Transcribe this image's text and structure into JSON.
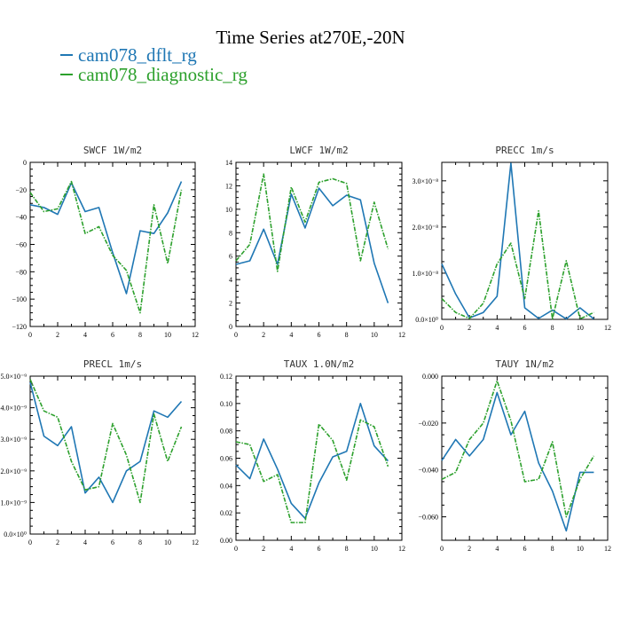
{
  "title": "Time Series at270E,-20N",
  "legend": [
    {
      "name": "cam078_dflt_rg",
      "color": "#1f77b4"
    },
    {
      "name": "cam078_diagnostic_rg",
      "color": "#2ca02c"
    }
  ],
  "chart_data": [
    {
      "type": "line",
      "title": "SWCF   1W/m2",
      "xlim": [
        0,
        12
      ],
      "xticks": [
        "0",
        "2",
        "4",
        "6",
        "8",
        "10",
        "12"
      ],
      "ylim": [
        -120,
        0
      ],
      "yticks": [
        {
          "v": 0,
          "label": "0"
        },
        {
          "v": -20,
          "label": "−20"
        },
        {
          "v": -40,
          "label": "−40"
        },
        {
          "v": -60,
          "label": "−60"
        },
        {
          "v": -80,
          "label": "−80"
        },
        {
          "v": -100,
          "label": "−100"
        },
        {
          "v": -120,
          "label": "−120"
        }
      ],
      "x": [
        0,
        1,
        2,
        3,
        4,
        5,
        6,
        7,
        8,
        9,
        10,
        11
      ],
      "series": [
        {
          "name": "cam078_dflt_rg",
          "color": "#1f77b4",
          "dashed": false,
          "values": [
            -31,
            -33,
            -38,
            -15,
            -36,
            -33,
            -66,
            -96,
            -50,
            -52,
            -37,
            -14
          ]
        },
        {
          "name": "cam078_diagnostic_rg",
          "color": "#2ca02c",
          "dashed": true,
          "values": [
            -22,
            -36,
            -34,
            -14,
            -52,
            -47,
            -68,
            -79,
            -110,
            -31,
            -74,
            -20
          ]
        }
      ]
    },
    {
      "type": "line",
      "title": "LWCF   1W/m2",
      "xlim": [
        0,
        12
      ],
      "xticks": [
        "0",
        "2",
        "4",
        "6",
        "8",
        "10",
        "12"
      ],
      "ylim": [
        0,
        14
      ],
      "yticks": [
        {
          "v": 0,
          "label": "0"
        },
        {
          "v": 2,
          "label": "2"
        },
        {
          "v": 4,
          "label": "4"
        },
        {
          "v": 6,
          "label": "6"
        },
        {
          "v": 8,
          "label": "8"
        },
        {
          "v": 10,
          "label": "10"
        },
        {
          "v": 12,
          "label": "12"
        },
        {
          "v": 14,
          "label": "14"
        }
      ],
      "x": [
        0,
        1,
        2,
        3,
        4,
        5,
        6,
        7,
        8,
        9,
        10,
        11
      ],
      "series": [
        {
          "name": "cam078_dflt_rg",
          "color": "#1f77b4",
          "dashed": false,
          "values": [
            5.3,
            5.6,
            8.3,
            5.3,
            11.3,
            8.4,
            11.8,
            10.3,
            11.2,
            10.8,
            5.4,
            2.0
          ]
        },
        {
          "name": "cam078_diagnostic_rg",
          "color": "#2ca02c",
          "dashed": true,
          "values": [
            5.6,
            7.0,
            13.0,
            4.7,
            11.9,
            8.9,
            12.3,
            12.6,
            12.2,
            5.6,
            10.6,
            6.6
          ]
        }
      ]
    },
    {
      "type": "line",
      "title": "PRECC   1m/s",
      "xlim": [
        0,
        12
      ],
      "xticks": [
        "0",
        "2",
        "4",
        "6",
        "8",
        "10",
        "12"
      ],
      "ylim": [
        0,
        3.4e-08
      ],
      "yticks": [
        {
          "v": 0,
          "label": "0.0×10⁰"
        },
        {
          "v": 1e-08,
          "label": "1.0×10⁻⁸"
        },
        {
          "v": 2e-08,
          "label": "2.0×10⁻⁸"
        },
        {
          "v": 3e-08,
          "label": "3.0×10⁻⁸"
        }
      ],
      "x": [
        0,
        1,
        2,
        3,
        4,
        5,
        6,
        7,
        8,
        9,
        10,
        11
      ],
      "series": [
        {
          "name": "cam078_dflt_rg",
          "color": "#1f77b4",
          "dashed": false,
          "values": [
            1.2e-08,
            5.5e-09,
            3e-10,
            1.5e-09,
            5e-09,
            3.38e-08,
            2.5e-09,
            2e-10,
            2e-09,
            1e-10,
            2.5e-09,
            1e-10
          ]
        },
        {
          "name": "cam078_diagnostic_rg",
          "color": "#2ca02c",
          "dashed": true,
          "values": [
            4.5e-09,
            1.5e-09,
            2e-10,
            3.5e-09,
            1.2e-08,
            1.65e-08,
            4.5e-09,
            2.35e-08,
            1e-10,
            1.27e-08,
            1e-10,
            1.5e-09
          ]
        }
      ]
    },
    {
      "type": "line",
      "title": "PRECL   1m/s",
      "xlim": [
        0,
        12
      ],
      "xticks": [
        "0",
        "2",
        "4",
        "6",
        "8",
        "10",
        "12"
      ],
      "ylim": [
        0,
        5e-09
      ],
      "yticks": [
        {
          "v": 0,
          "label": "0.0×10⁰"
        },
        {
          "v": 1e-09,
          "label": "1.0×10⁻⁹"
        },
        {
          "v": 2e-09,
          "label": "2.0×10⁻⁹"
        },
        {
          "v": 3e-09,
          "label": "3.0×10⁻⁹"
        },
        {
          "v": 4e-09,
          "label": "4.0×10⁻⁹"
        },
        {
          "v": 5e-09,
          "label": "5.0×10⁻⁹"
        }
      ],
      "x": [
        0,
        1,
        2,
        3,
        4,
        5,
        6,
        7,
        8,
        9,
        10,
        11
      ],
      "series": [
        {
          "name": "cam078_dflt_rg",
          "color": "#1f77b4",
          "dashed": false,
          "values": [
            4.8e-09,
            3.1e-09,
            2.8e-09,
            3.4e-09,
            1.3e-09,
            1.8e-09,
            1e-09,
            2e-09,
            2.3e-09,
            3.9e-09,
            3.7e-09,
            4.2e-09
          ]
        },
        {
          "name": "cam078_diagnostic_rg",
          "color": "#2ca02c",
          "dashed": true,
          "values": [
            4.9e-09,
            3.9e-09,
            3.7e-09,
            2.3e-09,
            1.4e-09,
            1.5e-09,
            3.5e-09,
            2.5e-09,
            1e-09,
            3.8e-09,
            2.3e-09,
            3.4e-09
          ]
        }
      ]
    },
    {
      "type": "line",
      "title": "TAUX   1.0N/m2",
      "xlim": [
        0,
        12
      ],
      "xticks": [
        "0",
        "2",
        "4",
        "6",
        "8",
        "10",
        "12"
      ],
      "ylim": [
        0,
        0.12
      ],
      "yticks": [
        {
          "v": 0,
          "label": "0.00"
        },
        {
          "v": 0.02,
          "label": "0.02"
        },
        {
          "v": 0.04,
          "label": "0.04"
        },
        {
          "v": 0.06,
          "label": "0.06"
        },
        {
          "v": 0.08,
          "label": "0.08"
        },
        {
          "v": 0.1,
          "label": "0.10"
        },
        {
          "v": 0.12,
          "label": "0.12"
        }
      ],
      "x": [
        0,
        1,
        2,
        3,
        4,
        5,
        6,
        7,
        8,
        9,
        10,
        11
      ],
      "series": [
        {
          "name": "cam078_dflt_rg",
          "color": "#1f77b4",
          "dashed": false,
          "values": [
            0.055,
            0.045,
            0.074,
            0.052,
            0.027,
            0.016,
            0.042,
            0.061,
            0.065,
            0.1,
            0.069,
            0.058
          ]
        },
        {
          "name": "cam078_diagnostic_rg",
          "color": "#2ca02c",
          "dashed": true,
          "values": [
            0.072,
            0.07,
            0.043,
            0.048,
            0.013,
            0.013,
            0.085,
            0.073,
            0.044,
            0.088,
            0.083,
            0.054
          ]
        }
      ]
    },
    {
      "type": "line",
      "title": "TAUY   1N/m2",
      "xlim": [
        0,
        12
      ],
      "xticks": [
        "0",
        "2",
        "4",
        "6",
        "8",
        "10",
        "12"
      ],
      "ylim": [
        -0.07,
        0
      ],
      "yticks": [
        {
          "v": 0,
          "label": "0.000"
        },
        {
          "v": -0.02,
          "label": "−0.020"
        },
        {
          "v": -0.04,
          "label": "−0.040"
        },
        {
          "v": -0.06,
          "label": "−0.060"
        }
      ],
      "x": [
        0,
        1,
        2,
        3,
        4,
        5,
        6,
        7,
        8,
        9,
        10,
        11
      ],
      "series": [
        {
          "name": "cam078_dflt_rg",
          "color": "#1f77b4",
          "dashed": false,
          "values": [
            -0.036,
            -0.027,
            -0.034,
            -0.027,
            -0.007,
            -0.025,
            -0.015,
            -0.037,
            -0.049,
            -0.066,
            -0.041,
            -0.041
          ]
        },
        {
          "name": "cam078_diagnostic_rg",
          "color": "#2ca02c",
          "dashed": true,
          "values": [
            -0.044,
            -0.041,
            -0.027,
            -0.02,
            -0.002,
            -0.019,
            -0.045,
            -0.044,
            -0.028,
            -0.06,
            -0.044,
            -0.034
          ]
        }
      ]
    }
  ]
}
